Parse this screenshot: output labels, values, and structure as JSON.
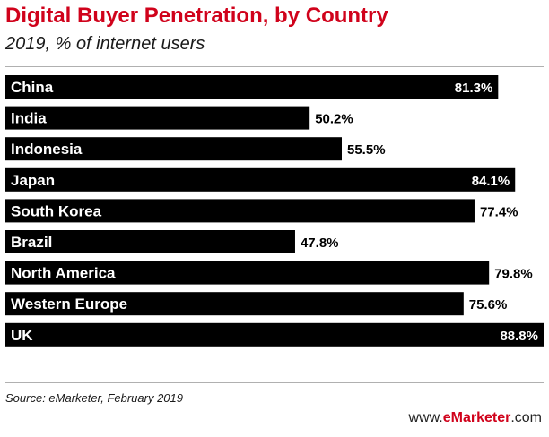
{
  "header": {
    "title": "Digital Buyer Penetration, by Country",
    "subtitle": "2019, % of internet users"
  },
  "chart_data": {
    "type": "bar",
    "orientation": "horizontal",
    "title": "Digital Buyer Penetration, by Country",
    "subtitle": "2019, % of internet users",
    "categories": [
      "China",
      "India",
      "Indonesia",
      "Japan",
      "South Korea",
      "Brazil",
      "North America",
      "Western Europe",
      "UK"
    ],
    "values": [
      81.3,
      50.2,
      55.5,
      84.1,
      77.4,
      47.8,
      79.8,
      75.6,
      88.8
    ],
    "value_labels": [
      "81.3%",
      "50.2%",
      "55.5%",
      "84.1%",
      "77.4%",
      "47.8%",
      "79.8%",
      "75.6%",
      "88.8%"
    ],
    "xlim": [
      0,
      88.8
    ],
    "grid": false,
    "legend": "none",
    "bar_color": "#000000"
  },
  "footer": {
    "source": "Source: eMarketer, February 2019",
    "brand_prefix": "www.",
    "brand_name": "eMarketer",
    "brand_suffix": ".com"
  }
}
